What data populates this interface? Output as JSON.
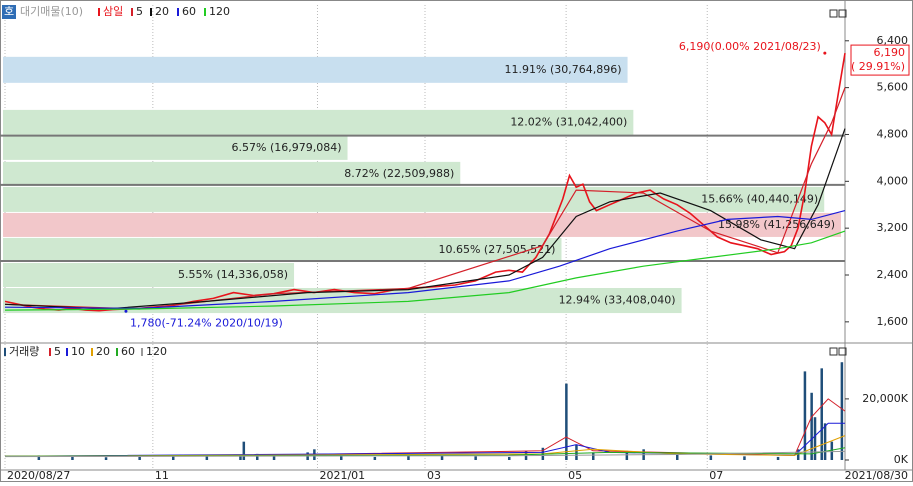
{
  "chart_data": [
    {
      "type": "line",
      "legend_tag": "호",
      "legend_title": "대기매물(10)",
      "xlim": [
        0,
        250
      ],
      "ylim": [
        1290,
        6960
      ],
      "yticks": [
        {
          "value": 1600,
          "label": "1,600"
        },
        {
          "value": 2400,
          "label": "2,400"
        },
        {
          "value": 3200,
          "label": "3,200"
        },
        {
          "value": 4000,
          "label": "4,000"
        },
        {
          "value": 4800,
          "label": "4,800"
        },
        {
          "value": 5600,
          "label": "5,600"
        },
        {
          "value": 6400,
          "label": "6,400"
        }
      ],
      "volume_profile": [
        {
          "low": 5682,
          "high": 6126,
          "pct": 11.91,
          "volume": 30764896,
          "label": "11.91% (30,764,896)",
          "color": "#c8dfef"
        },
        {
          "low": 4793,
          "high": 5220,
          "pct": 12.02,
          "volume": 31042400,
          "label": "12.02% (31,042,400)",
          "color": "#cfe8d0"
        },
        {
          "low": 4366,
          "high": 4776,
          "pct": 6.57,
          "volume": 16979084,
          "label": "6.57% (16,979,084)",
          "color": "#cfe8d0"
        },
        {
          "low": 3921,
          "high": 4332,
          "pct": 8.72,
          "volume": 22509988,
          "label": "8.72% (22,509,988)",
          "color": "#cfe8d0"
        },
        {
          "low": 3477,
          "high": 3904,
          "pct": 15.66,
          "volume": 40440149,
          "label": "15.66% (40,440,149)",
          "color": "#cfe8d0"
        },
        {
          "low": 3050,
          "high": 3460,
          "pct": 15.98,
          "volume": 41256649,
          "label": "15.98% (41,256,649)",
          "color": "#f2c7ca"
        },
        {
          "low": 2622,
          "high": 3033,
          "pct": 10.65,
          "volume": 27505521,
          "label": "10.65% (27,505,521)",
          "color": "#cfe8d0"
        },
        {
          "low": 2195,
          "high": 2605,
          "pct": 5.55,
          "volume": 14336058,
          "label": "5.55% (14,336,058)",
          "color": "#cfe8d0"
        },
        {
          "low": 1750,
          "high": 2178,
          "pct": 12.94,
          "volume": 33408040,
          "label": "12.94% (33,408,040)",
          "color": "#cfe8d0"
        }
      ],
      "levels": [
        4780,
        3940,
        2640
      ],
      "series": [
        {
          "name": "삼일",
          "color": "#e8141c",
          "x": [
            0,
            4,
            8,
            12,
            16,
            20,
            24,
            28,
            32,
            36,
            40,
            44,
            50,
            56,
            62,
            68,
            74,
            80,
            86,
            92,
            98,
            104,
            110,
            116,
            122,
            128,
            134,
            140,
            146,
            150,
            154,
            158,
            162,
            166,
            168,
            170,
            172,
            174,
            176,
            180,
            184,
            188,
            192,
            196,
            200,
            204,
            208,
            212,
            216,
            220,
            224,
            228,
            232,
            234,
            236,
            238,
            240,
            242,
            244,
            246,
            248,
            250
          ],
          "values": [
            1950,
            1900,
            1850,
            1820,
            1800,
            1830,
            1800,
            1790,
            1810,
            1820,
            1830,
            1850,
            1880,
            1950,
            2000,
            2100,
            2050,
            2080,
            2150,
            2100,
            2150,
            2100,
            2080,
            2150,
            2180,
            2200,
            2230,
            2300,
            2450,
            2480,
            2450,
            2700,
            3100,
            3700,
            4100,
            3900,
            3950,
            3650,
            3500,
            3600,
            3700,
            3800,
            3850,
            3700,
            3600,
            3450,
            3250,
            3050,
            2950,
            2900,
            2850,
            2750,
            2800,
            2900,
            3200,
            3800,
            4600,
            5100,
            5000,
            4800,
            5500,
            6190
          ]
        },
        {
          "name": "5",
          "color": "#d4202a",
          "x": [
            0,
            40,
            80,
            120,
            160,
            170,
            190,
            210,
            230,
            240,
            246,
            250
          ],
          "values": [
            1900,
            1820,
            2080,
            2170,
            2900,
            3850,
            3800,
            3150,
            2780,
            4300,
            5000,
            5600
          ]
        },
        {
          "name": "20",
          "color": "#111111",
          "x": [
            0,
            30,
            60,
            90,
            120,
            150,
            160,
            170,
            180,
            195,
            210,
            225,
            235,
            242,
            250
          ],
          "values": [
            1900,
            1820,
            1950,
            2100,
            2150,
            2400,
            2700,
            3400,
            3650,
            3800,
            3500,
            3000,
            2850,
            3600,
            4900
          ]
        },
        {
          "name": "60",
          "color": "#1a1ad8",
          "x": [
            0,
            40,
            80,
            120,
            150,
            165,
            180,
            200,
            215,
            230,
            240,
            250
          ],
          "values": [
            1850,
            1830,
            1950,
            2100,
            2300,
            2550,
            2850,
            3150,
            3350,
            3400,
            3350,
            3500
          ]
        },
        {
          "name": "120",
          "color": "#22cc22",
          "x": [
            0,
            40,
            80,
            120,
            150,
            170,
            190,
            210,
            230,
            240,
            250
          ],
          "values": [
            1800,
            1820,
            1870,
            1950,
            2100,
            2350,
            2550,
            2700,
            2850,
            2950,
            3150
          ]
        }
      ],
      "annotations": [
        {
          "text": "6,190(0.00% 2021/08/23)",
          "x": 244,
          "y": 6190,
          "color": "#e8141c"
        },
        {
          "text": "1,780(-71.24% 2020/10/19)",
          "x": 36,
          "y": 1780,
          "color": "#1a1ad8"
        }
      ],
      "last_price": 6190,
      "last_label": "6,190",
      "change_label": "( 29.91%)"
    },
    {
      "type": "bar",
      "xlim": [
        0,
        250
      ],
      "ylim": [
        0,
        36000
      ],
      "yticks": [
        {
          "value": 0,
          "label": "0K"
        },
        {
          "value": 20000,
          "label": "20,000K"
        }
      ],
      "xticks": [
        {
          "value": 0,
          "label": "2020/08/27"
        },
        {
          "value": 44,
          "label": "11"
        },
        {
          "value": 93,
          "label": "2021/01"
        },
        {
          "value": 125,
          "label": "03"
        },
        {
          "value": 167,
          "label": "05"
        },
        {
          "value": 209,
          "label": "07"
        },
        {
          "value": 250,
          "label": "2021/08/30"
        }
      ],
      "series": [
        {
          "name": "거래량",
          "color": "#1f4e79",
          "x": [
            10,
            20,
            30,
            40,
            50,
            60,
            70,
            71,
            75,
            80,
            90,
            92,
            100,
            110,
            120,
            130,
            140,
            150,
            155,
            160,
            167,
            170,
            175,
            185,
            190,
            200,
            210,
            220,
            230,
            236,
            238,
            240,
            241,
            243,
            244,
            246,
            249
          ],
          "values": [
            1500,
            1200,
            900,
            1000,
            1300,
            1200,
            1800,
            6000,
            2000,
            1500,
            2500,
            3500,
            1200,
            1000,
            1300,
            1500,
            1200,
            1000,
            3000,
            4000,
            25000,
            5000,
            2500,
            3000,
            3500,
            2000,
            1500,
            1200,
            1000,
            3500,
            29000,
            22000,
            14000,
            30000,
            12000,
            6000,
            32000
          ]
        },
        {
          "name": "5",
          "color": "#d4202a",
          "x": [
            0,
            60,
            160,
            167,
            175,
            235,
            240,
            245,
            250
          ],
          "values": [
            1200,
            1300,
            3000,
            7500,
            3000,
            1500,
            14000,
            20000,
            16000
          ]
        },
        {
          "name": "10",
          "color": "#1a1ad8",
          "x": [
            0,
            160,
            170,
            180,
            235,
            245,
            250
          ],
          "values": [
            1200,
            2500,
            5000,
            2500,
            1500,
            12000,
            12000
          ]
        },
        {
          "name": "20",
          "color": "#e0a000",
          "x": [
            0,
            160,
            175,
            200,
            235,
            250
          ],
          "values": [
            1200,
            2000,
            3500,
            2000,
            1500,
            8000
          ]
        },
        {
          "name": "60",
          "color": "#22aa22",
          "x": [
            0,
            150,
            180,
            240,
            250
          ],
          "values": [
            1200,
            1600,
            2500,
            2000,
            4000
          ]
        },
        {
          "name": "120",
          "color": "#999999",
          "x": [
            0,
            150,
            200,
            250
          ],
          "values": [
            1100,
            1400,
            1800,
            2800
          ]
        }
      ]
    }
  ]
}
